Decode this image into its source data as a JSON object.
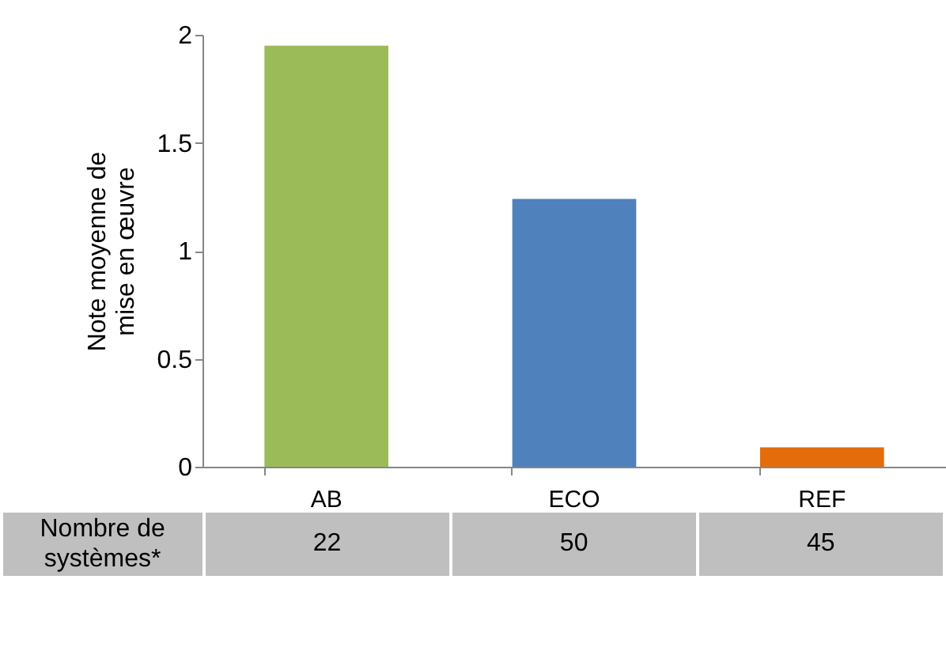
{
  "chart_data": {
    "type": "bar",
    "ylabel": "Note moyenne de\nmise en œuvre",
    "categories": [
      "AB",
      "ECO",
      "REF"
    ],
    "values": [
      1.95,
      1.24,
      0.09
    ],
    "colors": [
      "#9bbb59",
      "#4f81bd",
      "#e46c0a"
    ],
    "ylim": [
      0,
      2
    ],
    "yticks": [
      0,
      0.5,
      1,
      1.5,
      2
    ],
    "grid": false,
    "annotations": [
      "Nombre de systèmes*",
      "22",
      "50",
      "45"
    ]
  }
}
